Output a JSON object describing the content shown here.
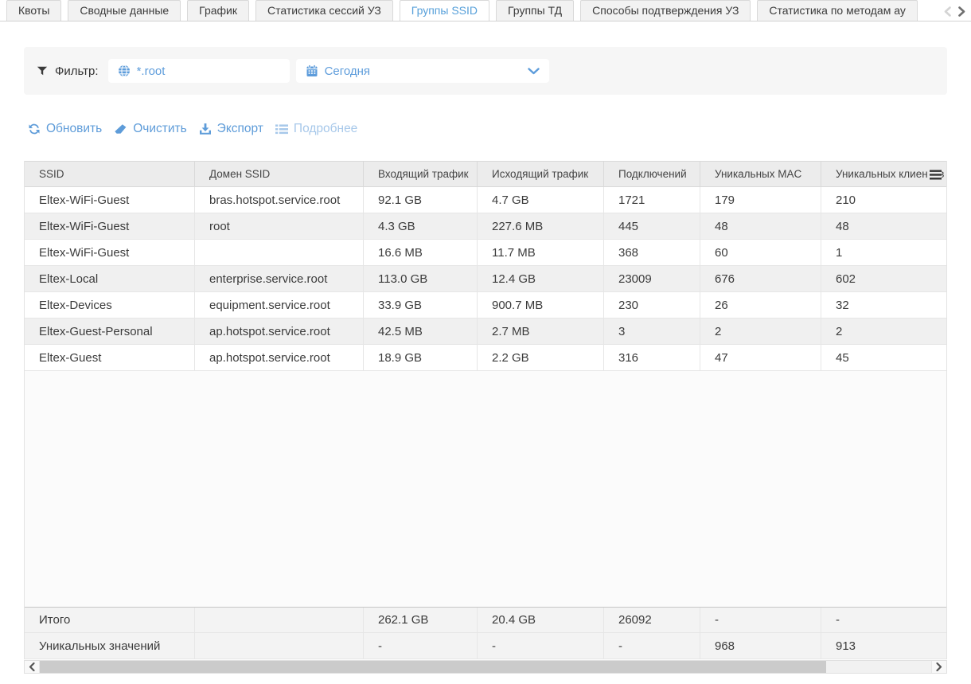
{
  "tab_bar": {
    "tabs": [
      {
        "label": "Квоты",
        "active": false
      },
      {
        "label": "Сводные данные",
        "active": false
      },
      {
        "label": "График",
        "active": false
      },
      {
        "label": "Статистика сессий УЗ",
        "active": false
      },
      {
        "label": "Группы SSID",
        "active": true
      },
      {
        "label": "Группы ТД",
        "active": false
      },
      {
        "label": "Способы подтверждения УЗ",
        "active": false
      },
      {
        "label": "Статистика по методам ау",
        "active": false
      }
    ]
  },
  "filter": {
    "label": "Фильтр:",
    "ssid_domain_value": "*.root",
    "period_value": "Сегодня"
  },
  "toolbar": {
    "refresh_label": "Обновить",
    "clear_label": "Очистить",
    "export_label": "Экспорт",
    "details_label": "Подробнее"
  },
  "table": {
    "columns": [
      "SSID",
      "Домен SSID",
      "Входящий трафик",
      "Исходящий трафик",
      "Подключений",
      "Уникальных MAC",
      "Уникальных клиентов"
    ],
    "rows": [
      [
        "Eltex-WiFi-Guest",
        "bras.hotspot.service.root",
        "92.1 GB",
        "4.7 GB",
        "1721",
        "179",
        "210"
      ],
      [
        "Eltex-WiFi-Guest",
        "root",
        "4.3 GB",
        "227.6 MB",
        "445",
        "48",
        "48"
      ],
      [
        "Eltex-WiFi-Guest",
        "",
        "16.6 MB",
        "11.7 MB",
        "368",
        "60",
        "1"
      ],
      [
        "Eltex-Local",
        "enterprise.service.root",
        "113.0 GB",
        "12.4 GB",
        "23009",
        "676",
        "602"
      ],
      [
        "Eltex-Devices",
        "equipment.service.root",
        "33.9 GB",
        "900.7 MB",
        "230",
        "26",
        "32"
      ],
      [
        "Eltex-Guest-Personal",
        "ap.hotspot.service.root",
        "42.5 MB",
        "2.7 MB",
        "3",
        "2",
        "2"
      ],
      [
        "Eltex-Guest",
        "ap.hotspot.service.root",
        "18.9 GB",
        "2.2 GB",
        "316",
        "47",
        "45"
      ]
    ],
    "summary_rows": [
      {
        "cells": [
          "Итого",
          "",
          "262.1 GB",
          "20.4 GB",
          "26092",
          "-",
          "-"
        ]
      },
      {
        "cells": [
          "Уникальных значений",
          "",
          "-",
          "-",
          "-",
          "968",
          "913"
        ]
      }
    ]
  },
  "icons": {
    "filter": "funnel-glyph",
    "globe": "globe-glyph",
    "calendar": "calendar-glyph",
    "chevron_down": "⌄",
    "refresh": "circular-arrows",
    "clear": "eraser",
    "export": "download-arrow",
    "details": "list-lines",
    "columns_menu": "≡",
    "tab_scroll_left": "‹",
    "tab_scroll_right": "›",
    "scroll_left": "‹",
    "scroll_right": "›"
  },
  "colors": {
    "accent": "#5d9cdb",
    "accent_muted": "#a7c8ea",
    "text": "#3b3b3b",
    "header_bg": "#ececec",
    "row_alt_bg": "#f0f0f0",
    "panel_bg": "#f6f6f6"
  }
}
